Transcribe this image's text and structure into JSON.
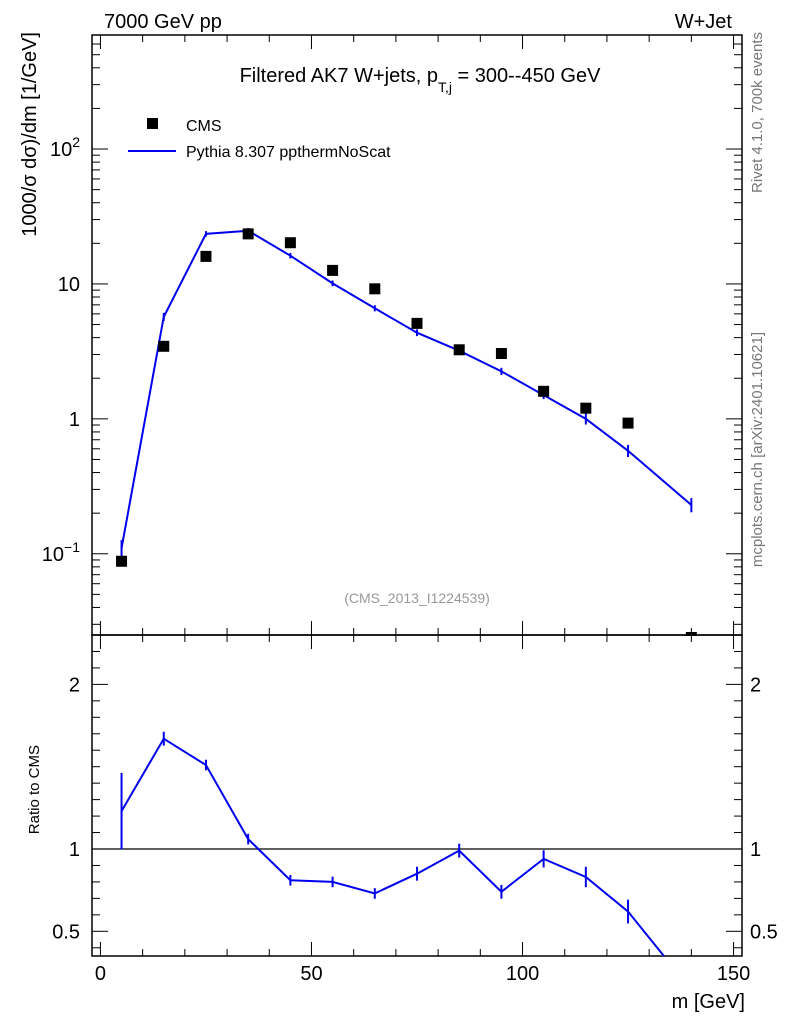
{
  "header": {
    "left": "7000 GeV pp",
    "right": "W+Jet"
  },
  "side_labels": {
    "rivet": "Rivet 4.1.0,  700k events",
    "mcplots": "mcplots.cern.ch [arXiv:2401.10621]"
  },
  "chart_data": [
    {
      "type": "scatter",
      "title": "Filtered AK7 W+jets, p",
      "title_sub": "T,j",
      "title_tail": " = 300--450 GeV",
      "ylabel": "1000/σ  dσ)/dm [1/GeV]",
      "yscale": "log",
      "ylim": [
        0.025,
        700
      ],
      "xlim": [
        -2,
        152
      ],
      "yticks": [
        {
          "value": 0.1,
          "base": "10",
          "exp": "−1"
        },
        {
          "value": 1,
          "base": "1",
          "exp": ""
        },
        {
          "value": 10,
          "base": "10",
          "exp": ""
        },
        {
          "value": 100,
          "base": "10",
          "exp": "2"
        }
      ],
      "annotation": "(CMS_2013_I1224539)",
      "legend": [
        {
          "name": "CMS",
          "marker": "square",
          "color": "#000000"
        },
        {
          "name": "Pythia 8.307 ppthermNoScat",
          "marker": "line",
          "color": "#0000ee"
        }
      ],
      "series": [
        {
          "name": "CMS",
          "x": [
            5,
            15,
            25,
            35,
            45,
            55,
            65,
            75,
            85,
            95,
            105,
            115,
            125,
            140
          ],
          "y": [
            0.088,
            3.45,
            16,
            23.5,
            20.2,
            12.6,
            9.2,
            5.1,
            3.25,
            3.05,
            1.6,
            1.2,
            0.93,
            0.022
          ]
        },
        {
          "name": "Pythia 8.307 ppthermNoScat",
          "x": [
            5,
            15,
            25,
            35,
            45,
            55,
            65,
            75,
            85,
            95,
            105,
            115,
            125,
            140
          ],
          "y": [
            0.11,
            5.7,
            23.5,
            24.8,
            16.2,
            10.1,
            6.6,
            4.35,
            3.2,
            2.25,
            1.5,
            1.0,
            0.58,
            0.23
          ],
          "err": [
            0.012,
            0.2,
            0.3,
            0.3,
            0.2,
            0.15,
            0.12,
            0.1,
            0.08,
            0.06,
            0.05,
            0.06,
            0.04,
            0.02
          ]
        }
      ]
    },
    {
      "type": "line",
      "ylabel": "Ratio to CMS",
      "xlabel": "m [GeV]",
      "ylim": [
        0.35,
        2.3
      ],
      "xlim": [
        -2,
        152
      ],
      "xticks": [
        0,
        50,
        100,
        150
      ],
      "yticks": [
        0.5,
        1,
        2
      ],
      "reference_line": 1,
      "series": [
        {
          "name": "Pythia 8.307 ppthermNoScat / CMS",
          "x": [
            5,
            15,
            25,
            35,
            45,
            55,
            65,
            75,
            85,
            95,
            105,
            115,
            125,
            133.5
          ],
          "y": [
            1.23,
            1.67,
            1.51,
            1.06,
            0.81,
            0.8,
            0.73,
            0.85,
            0.99,
            0.74,
            0.94,
            0.83,
            0.62,
            0.35
          ],
          "err": [
            0.22,
            0.03,
            0.02,
            0.02,
            0.02,
            0.02,
            0.02,
            0.03,
            0.03,
            0.03,
            0.04,
            0.05,
            0.06,
            0
          ]
        }
      ]
    }
  ]
}
